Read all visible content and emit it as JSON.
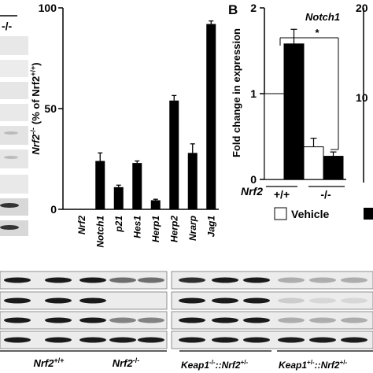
{
  "chart_data": [
    {
      "type": "bar",
      "categories": [
        "Nrf2",
        "Notch1",
        "p21",
        "Hes1",
        "Herp1",
        "Herp2",
        "Nrarp",
        "Jag1"
      ],
      "values": [
        0,
        24,
        11,
        23,
        4.5,
        54,
        28,
        92
      ],
      "errors": [
        0,
        4,
        1,
        1,
        0.5,
        2.5,
        4.5,
        1.5
      ],
      "ylim": [
        0,
        100
      ],
      "yticks": [
        "0",
        "50",
        "100"
      ],
      "ylabel_main": "Nrf2",
      "ylabel_sup": "-/-",
      "ylabel_rest": "(% of Nrf2",
      "ylabel_sup2": "+/+",
      "ylabel_close": ")",
      "title": "",
      "grid": false
    },
    {
      "type": "bar",
      "panel_label": "B",
      "title": "Notch1",
      "ylabel": "Fold change in expression",
      "ylim": [
        0,
        2
      ],
      "yticks": [
        "0",
        "1",
        "2"
      ],
      "groups": [
        "+/+",
        "-/-"
      ],
      "group_axis_label": "Nrf2",
      "series": [
        {
          "name": "Vehicle",
          "values": [
            1.0,
            0.38
          ],
          "errors": [
            0,
            0.1
          ],
          "color": "#ffffff"
        },
        {
          "name": "",
          "values": [
            1.58,
            0.27
          ],
          "errors": [
            0.17,
            0.05
          ],
          "color": "#000000"
        }
      ],
      "significance": "*",
      "right_axis_ticks": [
        "20",
        "10"
      ],
      "grid": false
    }
  ],
  "blot": {
    "top_label": "-/-",
    "bottom_labels": [
      "Nrf2",
      "+/+",
      "Nrf2",
      "-/-",
      "Keap1",
      "-/-",
      "::Nrf2",
      "+/-",
      "Keap1",
      "+/-",
      "::Nrf2",
      "+/-"
    ],
    "colors": {
      "band": "#1a1a1a",
      "background": "#ececec"
    }
  }
}
